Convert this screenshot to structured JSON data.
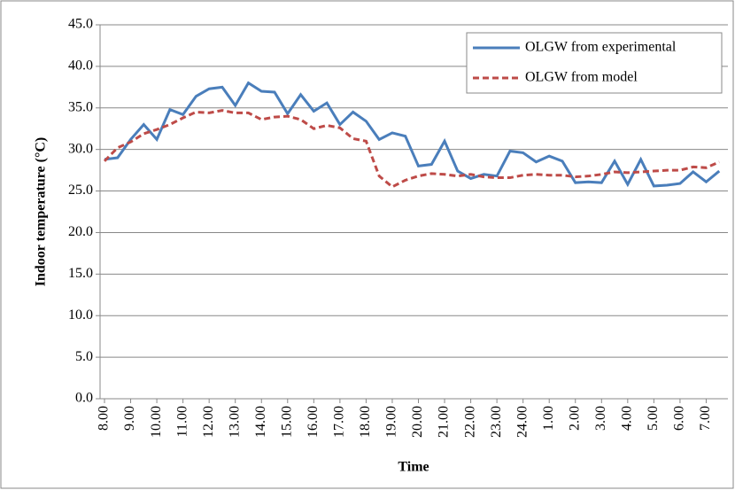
{
  "chart_data": {
    "type": "line",
    "y_label": "Indoor temperature (°C)",
    "x_label": "Time",
    "categories": [
      "8.00",
      null,
      "9.00",
      null,
      "10.00",
      null,
      "11.00",
      null,
      "12.00",
      null,
      "13.00",
      null,
      "14.00",
      null,
      "15.00",
      null,
      "16.00",
      null,
      "17.00",
      null,
      "18.00",
      null,
      "19.00",
      null,
      "20.00",
      null,
      "21.00",
      null,
      "22.00",
      null,
      "23.00",
      null,
      "24.00",
      null,
      "1.00",
      null,
      "2.00",
      null,
      "3.00",
      null,
      "4.00",
      null,
      "5.00",
      null,
      "6.00",
      null,
      "7.00",
      null
    ],
    "series": [
      {
        "name": "OLGW from experimental",
        "color": "#4a7ebb",
        "dash": "solid",
        "values": [
          28.8,
          29.0,
          31.2,
          33.0,
          31.2,
          34.8,
          34.2,
          36.4,
          37.3,
          37.5,
          35.3,
          38.0,
          37.0,
          36.9,
          34.3,
          36.6,
          34.6,
          35.6,
          33.0,
          34.5,
          33.4,
          31.2,
          32.0,
          31.6,
          28.0,
          28.2,
          31.0,
          27.4,
          26.5,
          27.0,
          26.8,
          29.8,
          29.6,
          28.5,
          29.2,
          28.6,
          26.0,
          26.1,
          26.0,
          28.6,
          25.8,
          28.8,
          25.6,
          25.7,
          25.9,
          27.3,
          26.1,
          27.4
        ]
      },
      {
        "name": "OLGW from model",
        "color": "#be4b48",
        "dash": "dashed",
        "values": [
          28.6,
          30.2,
          30.9,
          31.9,
          32.4,
          33.0,
          33.8,
          34.5,
          34.4,
          34.7,
          34.4,
          34.4,
          33.6,
          33.9,
          34.0,
          33.6,
          32.5,
          32.9,
          32.6,
          31.3,
          31.0,
          26.8,
          25.5,
          26.3,
          26.8,
          27.1,
          27.0,
          26.8,
          27.0,
          26.7,
          26.6,
          26.6,
          26.9,
          27.0,
          26.9,
          26.9,
          26.7,
          26.8,
          27.0,
          27.3,
          27.2,
          27.3,
          27.4,
          27.5,
          27.5,
          27.9,
          27.8,
          28.5
        ]
      }
    ],
    "ylim": [
      0,
      45
    ],
    "yticks": [
      {
        "value": 0,
        "label": "0.0"
      },
      {
        "value": 5,
        "label": "5.0"
      },
      {
        "value": 10,
        "label": "10.0"
      },
      {
        "value": 15,
        "label": "15.0"
      },
      {
        "value": 20,
        "label": "20.0"
      },
      {
        "value": 25,
        "label": "25.0"
      },
      {
        "value": 30,
        "label": "30.0"
      },
      {
        "value": 35,
        "label": "35.0"
      },
      {
        "value": 40,
        "label": "40.0"
      },
      {
        "value": 45,
        "label": "45.0"
      }
    ],
    "grid": true,
    "legend": "top-right"
  }
}
